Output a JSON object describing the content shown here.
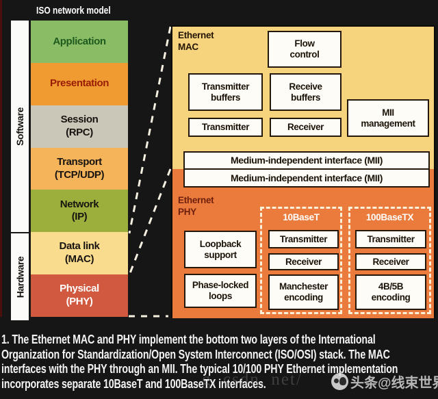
{
  "title": "ISO network model",
  "side": {
    "software": "Software",
    "hardware": "Hardware"
  },
  "stack": [
    {
      "label": "Application",
      "sub": "",
      "bg": "#8abc66",
      "fg": "#1d5a1d"
    },
    {
      "label": "Presentation",
      "sub": "",
      "bg": "#ef9b31",
      "fg": "#9a1c05"
    },
    {
      "label": "Session",
      "sub": "(RPC)",
      "bg": "#cbc7b8",
      "fg": "#171310"
    },
    {
      "label": "Transport",
      "sub": "(TCP/UDP)",
      "bg": "#f6b45a",
      "fg": "#171310"
    },
    {
      "label": "Network",
      "sub": "(IP)",
      "bg": "#9cae3b",
      "fg": "#171310"
    },
    {
      "label": "Data link",
      "sub": "(MAC)",
      "bg": "#f9dc8e",
      "fg": "#171310"
    },
    {
      "label": "Physical",
      "sub": "(PHY)",
      "bg": "#d1593f",
      "fg": "#ffffff"
    }
  ],
  "mac": {
    "section_label": "Ethernet\nMAC",
    "flow_control": "Flow\ncontrol",
    "transmitter_buffers": "Transmitter\nbuffers",
    "receive_buffers": "Receive\nbuffers",
    "mii_management": "MII\nmanagement",
    "transmitter": "Transmitter",
    "receiver": "Receiver",
    "mii_bar_1": "Medium-independent interface (MII)",
    "mii_bar_2": "Medium-independent interface (MII)"
  },
  "phy": {
    "section_label": "Ethernet\nPHY",
    "loopback_support": "Loopback\nsupport",
    "phase_locked_loops": "Phase-locked\nloops",
    "base10": {
      "label": "10BaseT",
      "transmitter": "Transmitter",
      "receiver": "Receiver",
      "encoding": "Manchester\nencoding"
    },
    "base100": {
      "label": "100BaseTX",
      "transmitter": "Transmitter",
      "receiver": "Receiver",
      "encoding": "4B/5B\nencoding"
    }
  },
  "caption_lines": [
    "1. The Ethernet MAC and PHY implement the bottom two layers of the International",
    "Organization for Standardization/Open System Interconnect (ISO/OSI) stack. The MAC",
    "interfaces with the PHY through an MII. The typical 10/100 PHY Ethernet implementation",
    "incorporates separate 10BaseT and 100BaseTX interfaces."
  ],
  "watermark": {
    "csdn": "g. csdn. net/",
    "toutiao": "头条@线束世界"
  },
  "colors": {
    "background": "#161616",
    "mac_bg": "#f5d47d",
    "phy_bg": "#ea7b3c",
    "box_bg": "#fdfcf7",
    "box_border": "#221709",
    "dash_line": "#f5f0e0",
    "caption_fg": "#f3f3f3"
  }
}
